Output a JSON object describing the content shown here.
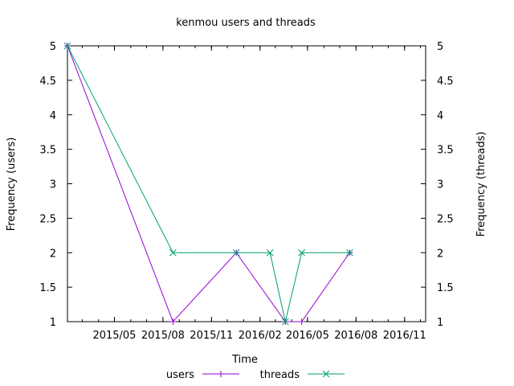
{
  "chart_data": {
    "type": "line",
    "title": "kenmou users and threads",
    "xlabel": "Time",
    "ylabel_left": "Frequency (users)",
    "ylabel_right": "Frequency (threads)",
    "ylim": [
      1,
      5
    ],
    "y_ticks": [
      "1",
      "1.5",
      "2",
      "2.5",
      "3",
      "3.5",
      "4",
      "4.5",
      "5"
    ],
    "xlim": [
      "2015-02-01",
      "2016-12-11"
    ],
    "x_ticks": [
      {
        "date": "2015-05-01",
        "label": "2015/05"
      },
      {
        "date": "2015-08-01",
        "label": "2015/08"
      },
      {
        "date": "2015-11-01",
        "label": "2015/11"
      },
      {
        "date": "2016-02-01",
        "label": "2016/02"
      },
      {
        "date": "2016-05-01",
        "label": "2016/05"
      },
      {
        "date": "2016-08-01",
        "label": "2016/08"
      },
      {
        "date": "2016-11-01",
        "label": "2016/11"
      }
    ],
    "legend_position": "bottom",
    "series": [
      {
        "name": "users",
        "color": "#9400d3",
        "marker": "plus",
        "points": [
          {
            "x": "2015-02-01",
            "y": 5
          },
          {
            "x": "2015-08-20",
            "y": 1
          },
          {
            "x": "2015-12-18",
            "y": 2
          },
          {
            "x": "2016-03-20",
            "y": 1
          },
          {
            "x": "2016-04-20",
            "y": 1
          },
          {
            "x": "2016-07-20",
            "y": 2
          }
        ]
      },
      {
        "name": "threads",
        "color": "#009e73",
        "marker": "cross",
        "points": [
          {
            "x": "2015-02-01",
            "y": 5
          },
          {
            "x": "2015-08-20",
            "y": 2
          },
          {
            "x": "2015-12-18",
            "y": 2
          },
          {
            "x": "2016-02-20",
            "y": 2
          },
          {
            "x": "2016-03-20",
            "y": 1
          },
          {
            "x": "2016-04-20",
            "y": 2
          },
          {
            "x": "2016-07-20",
            "y": 2
          }
        ]
      }
    ]
  }
}
